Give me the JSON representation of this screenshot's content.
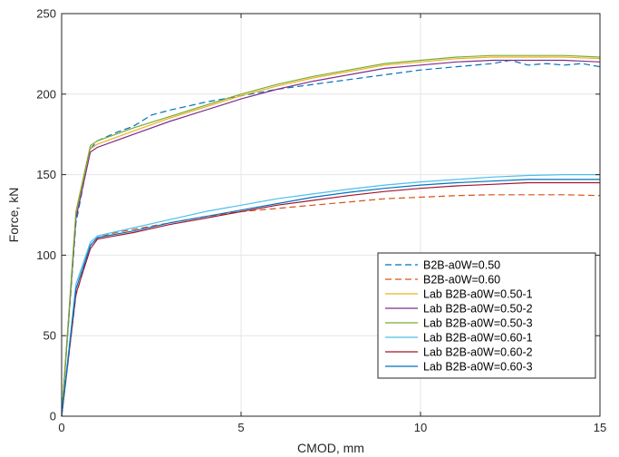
{
  "chart_data": {
    "type": "line",
    "xlabel": "CMOD, mm",
    "ylabel": "Force, kN",
    "xlim": [
      0,
      15
    ],
    "ylim": [
      0,
      250
    ],
    "xticks": [
      "0",
      "5",
      "10",
      "15"
    ],
    "yticks": [
      "0",
      "50",
      "100",
      "150",
      "200",
      "250"
    ],
    "grid": true,
    "legend_position": "lower-right",
    "series": [
      {
        "name": "B2B-a0W=0.50",
        "color": "#0072BD",
        "dash": "dashed",
        "x": [
          0,
          0.4,
          0.8,
          1.0,
          1.5,
          2.0,
          2.5,
          3.0,
          4.0,
          5.0,
          6.0,
          7.0,
          8.0,
          9.0,
          10.0,
          11.0,
          12.0,
          12.5,
          13.0,
          13.5,
          14.0,
          14.5,
          15.0
        ],
        "y": [
          0,
          120,
          166,
          171,
          176,
          180,
          187,
          190,
          195,
          199,
          203,
          206,
          209,
          212,
          215,
          217,
          219,
          221,
          218,
          219,
          218,
          219,
          217
        ]
      },
      {
        "name": "B2B-a0W=0.60",
        "color": "#D95319",
        "dash": "dashed",
        "x": [
          0,
          0.4,
          0.8,
          1.0,
          1.5,
          2.0,
          3.0,
          4.0,
          5.0,
          6.0,
          7.0,
          8.0,
          9.0,
          10.0,
          11.0,
          12.0,
          13.0,
          14.0,
          15.0
        ],
        "y": [
          0,
          75,
          106,
          111,
          114,
          116,
          120,
          124,
          127,
          129,
          131,
          133,
          135,
          136,
          137,
          137.5,
          137.5,
          137.5,
          137
        ]
      },
      {
        "name": "Lab B2B-a0W=0.50-1",
        "color": "#EDB120",
        "dash": "solid",
        "x": [
          0,
          0.4,
          0.8,
          1.0,
          2.0,
          3.0,
          4.0,
          5.0,
          6.0,
          7.0,
          8.0,
          9.0,
          10.0,
          11.0,
          12.0,
          13.0,
          14.0,
          15.0
        ],
        "y": [
          0,
          125,
          166,
          169,
          177,
          185,
          192,
          199,
          205,
          210,
          214,
          218,
          220,
          222,
          223,
          223,
          223,
          222
        ]
      },
      {
        "name": "Lab B2B-a0W=0.50-2",
        "color": "#7E2F8E",
        "dash": "solid",
        "x": [
          0,
          0.4,
          0.8,
          1.0,
          2.0,
          3.0,
          4.0,
          5.0,
          6.0,
          7.0,
          8.0,
          9.0,
          10.0,
          11.0,
          12.0,
          13.0,
          14.0,
          15.0
        ],
        "y": [
          0,
          123,
          164,
          167,
          175,
          183,
          190,
          197,
          203,
          208,
          212,
          216,
          218,
          220,
          221,
          221,
          221,
          220
        ]
      },
      {
        "name": "Lab B2B-a0W=0.50-3",
        "color": "#77AC30",
        "dash": "solid",
        "x": [
          0,
          0.4,
          0.8,
          1.0,
          2.0,
          3.0,
          4.0,
          5.0,
          6.0,
          7.0,
          8.0,
          9.0,
          10.0,
          11.0,
          12.0,
          13.0,
          14.0,
          15.0
        ],
        "y": [
          0,
          127,
          168,
          171,
          179,
          186,
          193,
          200,
          206,
          211,
          215,
          219,
          221,
          223,
          224,
          224,
          224,
          223
        ]
      },
      {
        "name": "Lab B2B-a0W=0.60-1",
        "color": "#4DBEEE",
        "dash": "solid",
        "x": [
          0,
          0.4,
          0.8,
          1.0,
          2.0,
          3.0,
          4.0,
          5.0,
          6.0,
          7.0,
          8.0,
          9.0,
          10.0,
          11.0,
          12.0,
          13.0,
          14.0,
          15.0
        ],
        "y": [
          0,
          82,
          108,
          112,
          117,
          122,
          127,
          131,
          135,
          138,
          141,
          143.5,
          145.5,
          147,
          148.5,
          149.5,
          150,
          150
        ]
      },
      {
        "name": "Lab B2B-a0W=0.60-2",
        "color": "#A2142F",
        "dash": "solid",
        "x": [
          0,
          0.4,
          0.8,
          1.0,
          2.0,
          3.0,
          4.0,
          5.0,
          6.0,
          7.0,
          8.0,
          9.0,
          10.0,
          11.0,
          12.0,
          13.0,
          14.0,
          15.0
        ],
        "y": [
          0,
          76,
          104,
          110,
          114,
          119,
          123,
          127,
          131,
          134,
          137,
          139.5,
          141.5,
          143,
          144,
          145,
          145,
          145
        ]
      },
      {
        "name": "Lab B2B-a0W=0.60-3",
        "color": "#0072BD",
        "dash": "solid",
        "x": [
          0,
          0.4,
          0.8,
          1.0,
          2.0,
          3.0,
          4.0,
          5.0,
          6.0,
          7.0,
          8.0,
          9.0,
          10.0,
          11.0,
          12.0,
          13.0,
          14.0,
          15.0
        ],
        "y": [
          0,
          79,
          106,
          111,
          115,
          120,
          124,
          128,
          132,
          136,
          139,
          141.5,
          143.5,
          145,
          146,
          147,
          147,
          147
        ]
      }
    ]
  }
}
